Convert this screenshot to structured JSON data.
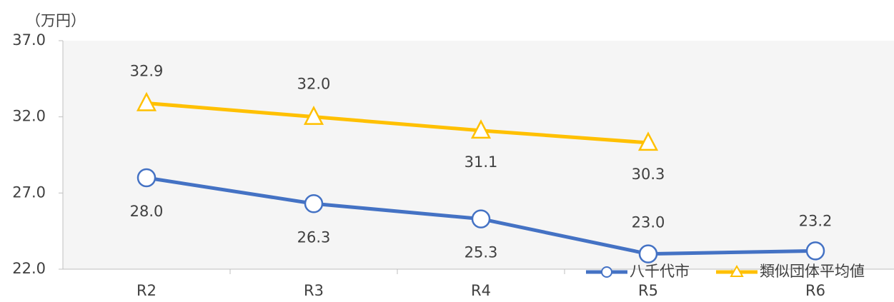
{
  "chart_data": {
    "type": "line",
    "y_label": "（万円）",
    "categories": [
      "R2",
      "R3",
      "R4",
      "R5",
      "R6"
    ],
    "series": [
      {
        "name": "八千代市",
        "color": "#4472c4",
        "marker": "circle",
        "values": [
          28.0,
          26.3,
          25.3,
          23.0,
          23.2
        ],
        "value_labels": [
          "28.0",
          "26.3",
          "25.3",
          "23.0",
          "23.2"
        ]
      },
      {
        "name": "類似団体平均値",
        "color": "#ffc000",
        "marker": "triangle",
        "values": [
          32.9,
          32.0,
          31.1,
          30.3,
          null
        ],
        "value_labels": [
          "32.9",
          "32.0",
          "31.1",
          "30.3",
          null
        ]
      }
    ],
    "ylim": [
      22,
      37
    ],
    "yticks": [
      {
        "value": 22,
        "label": "22.0"
      },
      {
        "value": 27,
        "label": "27.0"
      },
      {
        "value": 32,
        "label": "32.0"
      },
      {
        "value": 37,
        "label": "37.0"
      }
    ],
    "legend": "bottom-right"
  }
}
